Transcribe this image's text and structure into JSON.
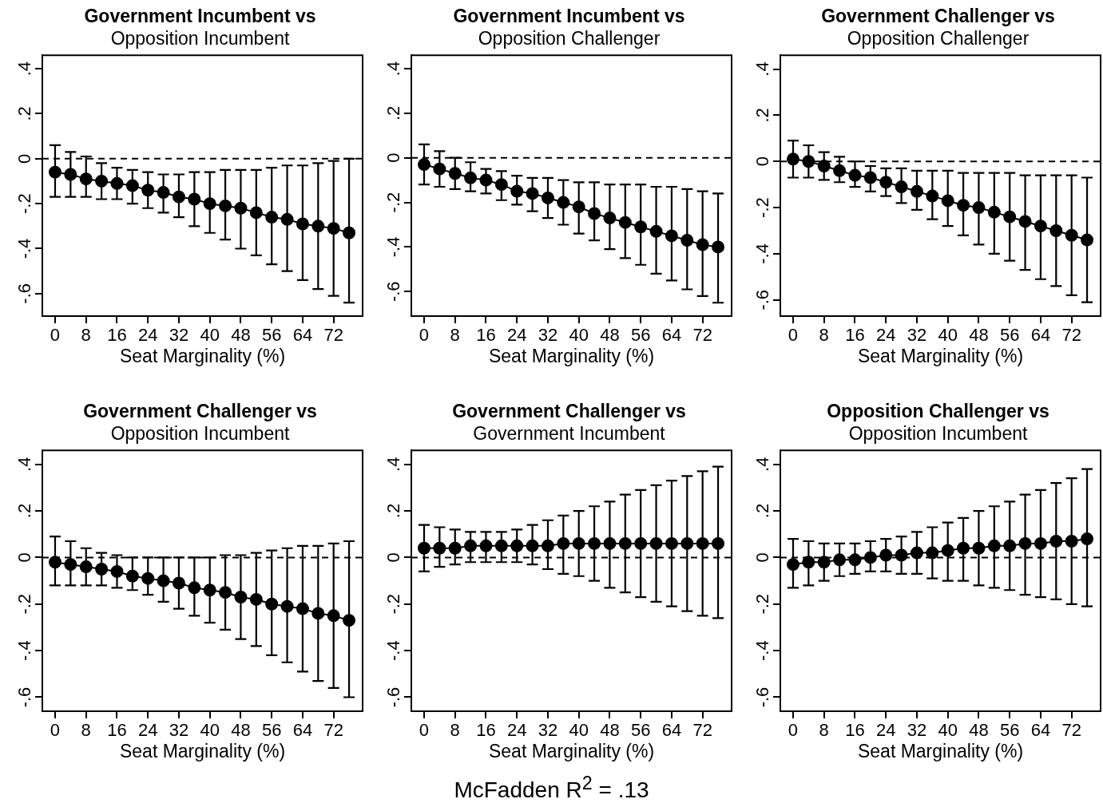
{
  "chart_data": [
    {
      "type": "line",
      "title": "Government Incumbent vs",
      "subtitle": "Opposition Incumbent",
      "xlabel": "Seat Marginality (%)",
      "x": [
        0,
        4,
        8,
        12,
        16,
        20,
        24,
        28,
        32,
        36,
        40,
        44,
        48,
        52,
        56,
        60,
        64,
        68,
        72,
        76
      ],
      "xlim": [
        -3.3,
        79.5
      ],
      "xticks": [
        0,
        8,
        16,
        24,
        32,
        40,
        48,
        56,
        64,
        72
      ],
      "ylim": [
        -0.7,
        0.46
      ],
      "yticks": [
        {
          "value": -0.6,
          "label": "-.6"
        },
        {
          "value": -0.4,
          "label": "-.4"
        },
        {
          "value": -0.2,
          "label": "-.2"
        },
        {
          "value": 0,
          "label": "0"
        },
        {
          "value": 0.2,
          "label": ".2"
        },
        {
          "value": 0.4,
          "label": ".4"
        }
      ],
      "grid": false,
      "legend": false,
      "marker": "circle",
      "line_style": "solid",
      "ref_lines": [
        {
          "axis": "y",
          "value": 0,
          "line_style": "dashed",
          "color": "#000000"
        }
      ],
      "series": [
        {
          "color": "#000000",
          "values": [
            -0.06,
            -0.07,
            -0.09,
            -0.1,
            -0.11,
            -0.12,
            -0.14,
            -0.15,
            -0.17,
            -0.18,
            -0.2,
            -0.21,
            -0.22,
            -0.24,
            -0.26,
            -0.27,
            -0.29,
            -0.3,
            -0.31,
            -0.33
          ],
          "errors": [
            [
              -0.17,
              0.06
            ],
            [
              -0.17,
              0.03
            ],
            [
              -0.17,
              0.01
            ],
            [
              -0.18,
              -0.02
            ],
            [
              -0.18,
              -0.04
            ],
            [
              -0.2,
              -0.05
            ],
            [
              -0.22,
              -0.06
            ],
            [
              -0.24,
              -0.07
            ],
            [
              -0.26,
              -0.07
            ],
            [
              -0.3,
              -0.06
            ],
            [
              -0.33,
              -0.06
            ],
            [
              -0.36,
              -0.05
            ],
            [
              -0.4,
              -0.05
            ],
            [
              -0.43,
              -0.05
            ],
            [
              -0.47,
              -0.04
            ],
            [
              -0.5,
              -0.03
            ],
            [
              -0.54,
              -0.03
            ],
            [
              -0.58,
              -0.02
            ],
            [
              -0.61,
              -0.01
            ],
            [
              -0.64,
              0
            ]
          ]
        }
      ]
    },
    {
      "type": "line",
      "title": "Government Incumbent vs",
      "subtitle": "Opposition Challenger",
      "xlabel": "Seat Marginality (%)",
      "x": [
        0,
        4,
        8,
        12,
        16,
        20,
        24,
        28,
        32,
        36,
        40,
        44,
        48,
        52,
        56,
        60,
        64,
        68,
        72,
        76
      ],
      "xlim": [
        -3.3,
        79.5
      ],
      "xticks": [
        0,
        8,
        16,
        24,
        32,
        40,
        48,
        56,
        64,
        72
      ],
      "ylim": [
        -0.71,
        0.46
      ],
      "yticks": [
        {
          "value": -0.6,
          "label": "-.6"
        },
        {
          "value": -0.4,
          "label": "-.4"
        },
        {
          "value": -0.2,
          "label": "-.2"
        },
        {
          "value": 0,
          "label": "0"
        },
        {
          "value": 0.2,
          "label": ".2"
        },
        {
          "value": 0.4,
          "label": ".4"
        }
      ],
      "grid": false,
      "legend": false,
      "marker": "circle",
      "line_style": "solid",
      "ref_lines": [
        {
          "axis": "y",
          "value": 0,
          "line_style": "dashed",
          "color": "#000000"
        }
      ],
      "series": [
        {
          "color": "#000000",
          "values": [
            -0.03,
            -0.05,
            -0.07,
            -0.09,
            -0.1,
            -0.12,
            -0.15,
            -0.16,
            -0.18,
            -0.2,
            -0.22,
            -0.25,
            -0.27,
            -0.29,
            -0.31,
            -0.33,
            -0.35,
            -0.37,
            -0.39,
            -0.4
          ],
          "errors": [
            [
              -0.12,
              0.06
            ],
            [
              -0.13,
              0.03
            ],
            [
              -0.14,
              0
            ],
            [
              -0.15,
              -0.02
            ],
            [
              -0.16,
              -0.05
            ],
            [
              -0.19,
              -0.06
            ],
            [
              -0.21,
              -0.08
            ],
            [
              -0.24,
              -0.09
            ],
            [
              -0.27,
              -0.09
            ],
            [
              -0.3,
              -0.1
            ],
            [
              -0.34,
              -0.11
            ],
            [
              -0.37,
              -0.11
            ],
            [
              -0.41,
              -0.12
            ],
            [
              -0.45,
              -0.12
            ],
            [
              -0.48,
              -0.12
            ],
            [
              -0.52,
              -0.13
            ],
            [
              -0.55,
              -0.13
            ],
            [
              -0.59,
              -0.14
            ],
            [
              -0.62,
              -0.15
            ],
            [
              -0.65,
              -0.16
            ]
          ]
        }
      ]
    },
    {
      "type": "line",
      "title": "Government Challenger vs",
      "subtitle": "Opposition Challenger",
      "xlabel": "Seat Marginality (%)",
      "x": [
        0,
        4,
        8,
        12,
        16,
        20,
        24,
        28,
        32,
        36,
        40,
        44,
        48,
        52,
        56,
        60,
        64,
        68,
        72,
        76
      ],
      "xlim": [
        -3.3,
        79.5
      ],
      "xticks": [
        0,
        8,
        16,
        24,
        32,
        40,
        48,
        56,
        64,
        72
      ],
      "ylim": [
        -0.67,
        0.46
      ],
      "yticks": [
        {
          "value": -0.6,
          "label": "-.6"
        },
        {
          "value": -0.4,
          "label": "-.4"
        },
        {
          "value": -0.2,
          "label": "-.2"
        },
        {
          "value": 0,
          "label": "0"
        },
        {
          "value": 0.2,
          "label": ".2"
        },
        {
          "value": 0.4,
          "label": ".4"
        }
      ],
      "grid": false,
      "legend": false,
      "marker": "circle",
      "line_style": "solid",
      "ref_lines": [
        {
          "axis": "y",
          "value": 0,
          "line_style": "dashed",
          "color": "#000000"
        }
      ],
      "series": [
        {
          "color": "#000000",
          "values": [
            0.01,
            0,
            -0.02,
            -0.04,
            -0.06,
            -0.07,
            -0.09,
            -0.11,
            -0.13,
            -0.15,
            -0.17,
            -0.19,
            -0.2,
            -0.22,
            -0.24,
            -0.26,
            -0.28,
            -0.3,
            -0.32,
            -0.34
          ],
          "errors": [
            [
              -0.07,
              0.09
            ],
            [
              -0.07,
              0.07
            ],
            [
              -0.08,
              0.04
            ],
            [
              -0.09,
              0.02
            ],
            [
              -0.11,
              0
            ],
            [
              -0.13,
              -0.02
            ],
            [
              -0.15,
              -0.03
            ],
            [
              -0.18,
              -0.03
            ],
            [
              -0.21,
              -0.04
            ],
            [
              -0.25,
              -0.04
            ],
            [
              -0.28,
              -0.04
            ],
            [
              -0.32,
              -0.05
            ],
            [
              -0.36,
              -0.05
            ],
            [
              -0.4,
              -0.05
            ],
            [
              -0.43,
              -0.05
            ],
            [
              -0.47,
              -0.06
            ],
            [
              -0.51,
              -0.06
            ],
            [
              -0.54,
              -0.06
            ],
            [
              -0.58,
              -0.06
            ],
            [
              -0.61,
              -0.07
            ]
          ]
        }
      ]
    },
    {
      "type": "line",
      "title": "Government Challenger vs",
      "subtitle": "Opposition Incumbent",
      "xlabel": "Seat Marginality (%)",
      "x": [
        0,
        4,
        8,
        12,
        16,
        20,
        24,
        28,
        32,
        36,
        40,
        44,
        48,
        52,
        56,
        60,
        64,
        68,
        72,
        76
      ],
      "xlim": [
        -3.3,
        79.5
      ],
      "xticks": [
        0,
        8,
        16,
        24,
        32,
        40,
        48,
        56,
        64,
        72
      ],
      "ylim": [
        -0.66,
        0.46
      ],
      "yticks": [
        {
          "value": -0.6,
          "label": "-.6"
        },
        {
          "value": -0.4,
          "label": "-.4"
        },
        {
          "value": -0.2,
          "label": "-.2"
        },
        {
          "value": 0,
          "label": "0"
        },
        {
          "value": 0.2,
          "label": ".2"
        },
        {
          "value": 0.4,
          "label": ".4"
        }
      ],
      "grid": false,
      "legend": false,
      "marker": "circle",
      "line_style": "solid",
      "ref_lines": [
        {
          "axis": "y",
          "value": 0,
          "line_style": "dashed",
          "color": "#000000"
        }
      ],
      "series": [
        {
          "color": "#000000",
          "values": [
            -0.02,
            -0.03,
            -0.04,
            -0.05,
            -0.06,
            -0.08,
            -0.09,
            -0.1,
            -0.11,
            -0.13,
            -0.14,
            -0.15,
            -0.17,
            -0.18,
            -0.2,
            -0.21,
            -0.22,
            -0.24,
            -0.25,
            -0.27
          ],
          "errors": [
            [
              -0.12,
              0.09
            ],
            [
              -0.12,
              0.07
            ],
            [
              -0.12,
              0.04
            ],
            [
              -0.12,
              0.02
            ],
            [
              -0.13,
              0.01
            ],
            [
              -0.14,
              0
            ],
            [
              -0.16,
              0
            ],
            [
              -0.19,
              0
            ],
            [
              -0.22,
              0
            ],
            [
              -0.25,
              0
            ],
            [
              -0.28,
              0
            ],
            [
              -0.31,
              0.01
            ],
            [
              -0.35,
              0.01
            ],
            [
              -0.38,
              0.02
            ],
            [
              -0.42,
              0.03
            ],
            [
              -0.45,
              0.04
            ],
            [
              -0.49,
              0.05
            ],
            [
              -0.53,
              0.05
            ],
            [
              -0.56,
              0.06
            ],
            [
              -0.6,
              0.07
            ]
          ]
        }
      ]
    },
    {
      "type": "line",
      "title": "Government Challenger vs",
      "subtitle": "Government Incumbent",
      "xlabel": "Seat Marginality (%)",
      "x": [
        0,
        4,
        8,
        12,
        16,
        20,
        24,
        28,
        32,
        36,
        40,
        44,
        48,
        52,
        56,
        60,
        64,
        68,
        72,
        76
      ],
      "xlim": [
        -3.3,
        79.5
      ],
      "xticks": [
        0,
        8,
        16,
        24,
        32,
        40,
        48,
        56,
        64,
        72
      ],
      "ylim": [
        -0.66,
        0.46
      ],
      "yticks": [
        {
          "value": -0.6,
          "label": "-.6"
        },
        {
          "value": -0.4,
          "label": "-.4"
        },
        {
          "value": -0.2,
          "label": "-.2"
        },
        {
          "value": 0,
          "label": "0"
        },
        {
          "value": 0.2,
          "label": ".2"
        },
        {
          "value": 0.4,
          "label": ".4"
        }
      ],
      "grid": false,
      "legend": false,
      "marker": "circle",
      "line_style": "solid",
      "ref_lines": [
        {
          "axis": "y",
          "value": 0,
          "line_style": "dashed",
          "color": "#000000"
        }
      ],
      "series": [
        {
          "color": "#000000",
          "values": [
            0.04,
            0.04,
            0.04,
            0.05,
            0.05,
            0.05,
            0.05,
            0.05,
            0.05,
            0.06,
            0.06,
            0.06,
            0.06,
            0.06,
            0.06,
            0.06,
            0.06,
            0.06,
            0.06,
            0.06
          ],
          "errors": [
            [
              -0.06,
              0.14
            ],
            [
              -0.04,
              0.13
            ],
            [
              -0.03,
              0.12
            ],
            [
              -0.02,
              0.11
            ],
            [
              -0.02,
              0.11
            ],
            [
              -0.02,
              0.11
            ],
            [
              -0.02,
              0.12
            ],
            [
              -0.03,
              0.14
            ],
            [
              -0.05,
              0.16
            ],
            [
              -0.07,
              0.18
            ],
            [
              -0.08,
              0.2
            ],
            [
              -0.1,
              0.22
            ],
            [
              -0.13,
              0.24
            ],
            [
              -0.15,
              0.27
            ],
            [
              -0.17,
              0.29
            ],
            [
              -0.19,
              0.31
            ],
            [
              -0.21,
              0.33
            ],
            [
              -0.23,
              0.35
            ],
            [
              -0.25,
              0.37
            ],
            [
              -0.26,
              0.39
            ]
          ]
        }
      ]
    },
    {
      "type": "line",
      "title": "Opposition Challenger vs",
      "subtitle": "Opposition Incumbent",
      "xlabel": "Seat Marginality (%)",
      "x": [
        0,
        4,
        8,
        12,
        16,
        20,
        24,
        28,
        32,
        36,
        40,
        44,
        48,
        52,
        56,
        60,
        64,
        68,
        72,
        76
      ],
      "xlim": [
        -3.3,
        79.5
      ],
      "xticks": [
        0,
        8,
        16,
        24,
        32,
        40,
        48,
        56,
        64,
        72
      ],
      "ylim": [
        -0.66,
        0.46
      ],
      "yticks": [
        {
          "value": -0.6,
          "label": "-.6"
        },
        {
          "value": -0.4,
          "label": "-.4"
        },
        {
          "value": -0.2,
          "label": "-.2"
        },
        {
          "value": 0,
          "label": "0"
        },
        {
          "value": 0.2,
          "label": ".2"
        },
        {
          "value": 0.4,
          "label": ".4"
        }
      ],
      "grid": false,
      "legend": false,
      "marker": "circle",
      "line_style": "solid",
      "ref_lines": [
        {
          "axis": "y",
          "value": 0,
          "line_style": "dashed",
          "color": "#000000"
        }
      ],
      "annotations": [
        "McFadden R$^{2}$ = .13"
      ],
      "series": [
        {
          "color": "#000000",
          "values": [
            -0.03,
            -0.02,
            -0.02,
            -0.01,
            -0.01,
            0,
            0.01,
            0.01,
            0.02,
            0.02,
            0.03,
            0.04,
            0.04,
            0.05,
            0.05,
            0.06,
            0.06,
            0.07,
            0.07,
            0.08
          ],
          "errors": [
            [
              -0.13,
              0.08
            ],
            [
              -0.12,
              0.07
            ],
            [
              -0.1,
              0.06
            ],
            [
              -0.08,
              0.06
            ],
            [
              -0.07,
              0.06
            ],
            [
              -0.06,
              0.07
            ],
            [
              -0.06,
              0.08
            ],
            [
              -0.07,
              0.09
            ],
            [
              -0.07,
              0.11
            ],
            [
              -0.09,
              0.13
            ],
            [
              -0.1,
              0.15
            ],
            [
              -0.1,
              0.17
            ],
            [
              -0.12,
              0.2
            ],
            [
              -0.13,
              0.22
            ],
            [
              -0.14,
              0.24
            ],
            [
              -0.16,
              0.27
            ],
            [
              -0.17,
              0.29
            ],
            [
              -0.18,
              0.32
            ],
            [
              -0.2,
              0.34
            ],
            [
              -0.21,
              0.38
            ]
          ]
        }
      ]
    }
  ]
}
